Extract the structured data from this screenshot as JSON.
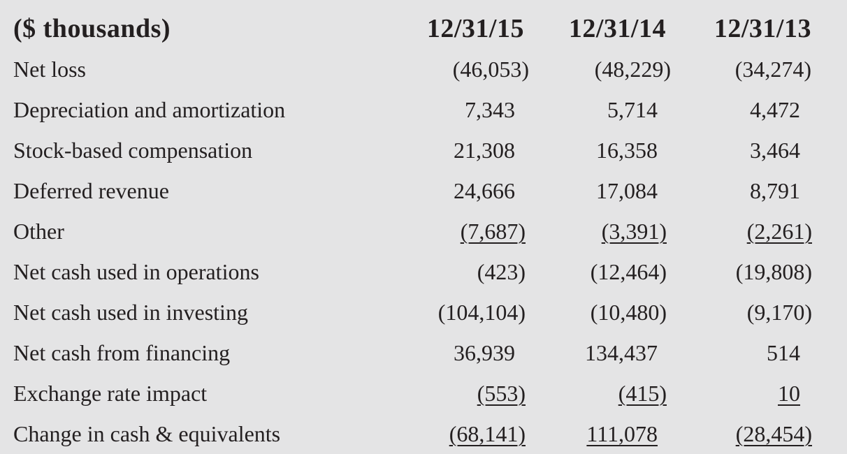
{
  "table": {
    "header": {
      "label": "($ thousands)",
      "columns": [
        "12/31/15",
        "12/31/14",
        "12/31/13"
      ]
    },
    "rows": [
      {
        "label": "Net loss",
        "values": [
          "(46,053)",
          "(48,229)",
          "(34,274)"
        ],
        "underlined": false
      },
      {
        "label": "Depreciation and amortization",
        "values": [
          "7,343",
          "5,714",
          "4,472"
        ],
        "underlined": false
      },
      {
        "label": "Stock-based compensation",
        "values": [
          "21,308",
          "16,358",
          "3,464"
        ],
        "underlined": false
      },
      {
        "label": "Deferred revenue",
        "values": [
          "24,666",
          "17,084",
          "8,791"
        ],
        "underlined": false
      },
      {
        "label": "Other",
        "values": [
          "(7,687)",
          "(3,391)",
          "(2,261)"
        ],
        "underlined": true
      },
      {
        "label": "Net cash used in operations",
        "values": [
          "(423)",
          "(12,464)",
          "(19,808)"
        ],
        "underlined": false
      },
      {
        "label": "Net cash used in investing",
        "values": [
          "(104,104)",
          "(10,480)",
          "(9,170)"
        ],
        "underlined": false
      },
      {
        "label": "Net cash from financing",
        "values": [
          "36,939",
          "134,437",
          "514"
        ],
        "underlined": false
      },
      {
        "label": "Exchange rate impact",
        "values": [
          "(553)",
          "(415)",
          "10"
        ],
        "underlined": true
      },
      {
        "label": "Change in cash & equivalents",
        "values": [
          "(68,141)",
          "111,078",
          "(28,454)"
        ],
        "underlined": true
      }
    ]
  },
  "colors": {
    "background": "#e4e4e5",
    "text": "#231f20"
  }
}
